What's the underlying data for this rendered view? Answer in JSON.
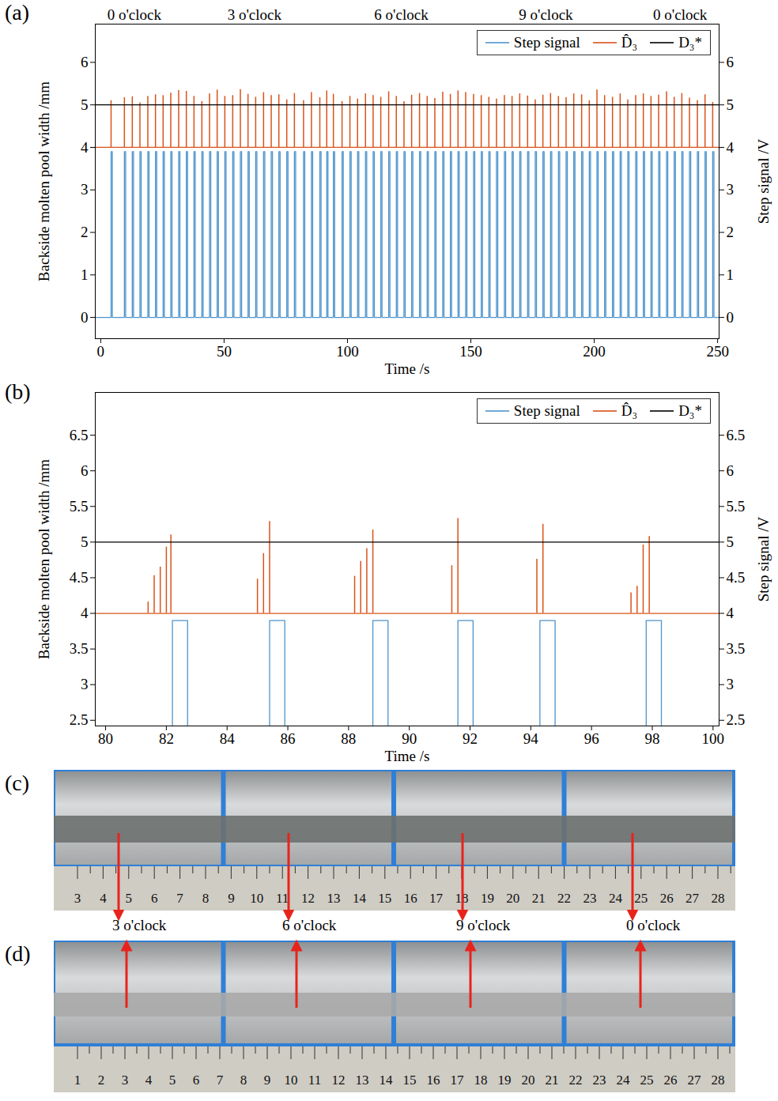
{
  "chart_data": [
    {
      "type": "line",
      "title": "(a)",
      "xlabel": "Time /s",
      "ylabel": "Backside molten pool width /mm",
      "y2label": "Step signal /V",
      "xlim": [
        -2.2,
        250.6
      ],
      "xticks": [
        0,
        50,
        100,
        150,
        200,
        250
      ],
      "x2ticks": [
        {
          "value": 13.6,
          "label": "0 o'clock"
        },
        {
          "value": 62.3,
          "label": "3 o'clock"
        },
        {
          "value": 121.8,
          "label": "6 o'clock"
        },
        {
          "value": 180.4,
          "label": "9 o'clock"
        },
        {
          "value": 234.8,
          "label": "0 o'clock"
        }
      ],
      "ylim": [
        -0.5,
        6.9
      ],
      "yticks": [
        0,
        1,
        2,
        3,
        4,
        5,
        6
      ],
      "y2lim": [
        -0.5,
        6.9
      ],
      "y2ticks": [
        0,
        1,
        2,
        3,
        4,
        5,
        6
      ],
      "legend": "top-right",
      "series": [
        {
          "name": "Step signal",
          "color": "#4d94cc",
          "type": "step",
          "axis": "y2",
          "low": 0,
          "high": 3.9,
          "pulse_width": 0.5,
          "x": [
            4.2,
            9.6,
            12.8,
            15.9,
            19.1,
            22.2,
            25.3,
            28.4,
            31.6,
            34.7,
            37.8,
            41.0,
            44.1,
            47.2,
            50.3,
            53.5,
            56.6,
            59.7,
            62.8,
            66.0,
            69.1,
            72.2,
            75.4,
            78.5,
            82.2,
            85.4,
            88.8,
            91.6,
            94.3,
            97.8,
            101.0,
            104.1,
            107.3,
            110.4,
            113.5,
            116.7,
            119.8,
            122.9,
            126.0,
            129.2,
            132.3,
            135.4,
            138.6,
            141.7,
            144.8,
            147.9,
            151.1,
            154.2,
            157.3,
            160.4,
            163.6,
            166.7,
            169.8,
            173.0,
            176.1,
            179.2,
            182.3,
            185.5,
            188.6,
            191.7,
            194.9,
            198.0,
            201.1,
            204.2,
            207.4,
            210.5,
            213.6,
            216.8,
            219.9,
            223.0,
            226.1,
            229.3,
            232.4,
            235.5,
            238.6,
            241.8,
            244.9,
            248.0
          ]
        },
        {
          "name": "D̂₃",
          "color": "#d95319",
          "type": "spike",
          "baseline": 4,
          "x": [
            4.2,
            9.6,
            12.8,
            15.9,
            19.1,
            22.2,
            25.3,
            28.4,
            31.6,
            34.7,
            37.8,
            41.0,
            44.1,
            47.2,
            50.3,
            53.5,
            56.6,
            59.7,
            62.8,
            66.0,
            69.1,
            72.2,
            75.4,
            78.5,
            82.2,
            85.4,
            88.8,
            91.6,
            94.3,
            97.8,
            101.0,
            104.1,
            107.3,
            110.4,
            113.5,
            116.7,
            119.8,
            122.9,
            126.0,
            129.2,
            132.3,
            135.4,
            138.6,
            141.7,
            144.8,
            147.9,
            151.1,
            154.2,
            157.3,
            160.4,
            163.6,
            166.7,
            169.8,
            173.0,
            176.1,
            179.2,
            182.3,
            185.5,
            188.6,
            191.7,
            194.9,
            198.0,
            201.1,
            204.2,
            207.4,
            210.5,
            213.6,
            216.8,
            219.9,
            223.0,
            226.1,
            229.3,
            232.4,
            235.5,
            238.6,
            241.8,
            244.9,
            248.0
          ],
          "values": [
            5.1,
            5.17,
            5.19,
            5.05,
            5.2,
            5.24,
            5.22,
            5.28,
            5.34,
            5.32,
            5.2,
            5.08,
            5.26,
            5.35,
            5.2,
            5.22,
            5.36,
            5.25,
            5.18,
            5.29,
            5.22,
            5.24,
            5.12,
            5.27,
            5.1,
            5.29,
            5.17,
            5.33,
            5.25,
            5.08,
            5.2,
            5.14,
            5.26,
            5.22,
            5.18,
            5.31,
            5.2,
            5.08,
            5.23,
            5.27,
            5.2,
            5.15,
            5.3,
            5.25,
            5.33,
            5.29,
            5.25,
            5.22,
            5.18,
            5.14,
            5.22,
            5.2,
            5.26,
            5.21,
            5.12,
            5.23,
            5.27,
            5.2,
            5.17,
            5.26,
            5.24,
            5.1,
            5.35,
            5.22,
            5.18,
            5.26,
            5.12,
            5.22,
            5.26,
            5.2,
            5.23,
            5.31,
            5.18,
            5.27,
            5.16,
            5.1,
            5.24,
            5.06
          ]
        },
        {
          "name": "D₃*",
          "color": "#000000",
          "type": "hline",
          "values": [
            5
          ]
        }
      ]
    },
    {
      "type": "line",
      "title": "(b)",
      "xlabel": "Time /s",
      "ylabel": "Backside molten pool width /mm",
      "y2label": "Step signal /V",
      "xlim": [
        79.66,
        100.2
      ],
      "xticks": [
        80,
        82,
        84,
        86,
        88,
        90,
        92,
        94,
        96,
        98,
        100
      ],
      "ylim": [
        2.42,
        7.1
      ],
      "yticks": [
        2.5,
        3,
        3.5,
        4,
        4.5,
        5,
        5.5,
        6,
        6.5
      ],
      "y2lim": [
        2.42,
        7.1
      ],
      "y2ticks": [
        2.5,
        3,
        3.5,
        4,
        4.5,
        5,
        5.5,
        6,
        6.5
      ],
      "legend": "top-right",
      "series": [
        {
          "name": "Step signal",
          "color": "#4d94cc",
          "type": "step",
          "axis": "y2",
          "low": 0,
          "high": 3.9,
          "pulse_width": 0.5,
          "x": [
            82.2,
            85.4,
            88.8,
            91.6,
            94.3,
            97.8
          ]
        },
        {
          "name": "D̂₃",
          "color": "#d95319",
          "type": "spike",
          "baseline": 4,
          "x": [
            81.4,
            81.6,
            81.8,
            82.0,
            82.15,
            85.0,
            85.2,
            85.4,
            88.2,
            88.4,
            88.6,
            88.8,
            91.4,
            91.6,
            94.2,
            94.4,
            97.3,
            97.5,
            97.7,
            97.9
          ],
          "values": [
            4.16,
            4.53,
            4.65,
            4.93,
            5.1,
            4.48,
            4.84,
            5.29,
            4.52,
            4.73,
            4.91,
            5.17,
            4.67,
            5.33,
            4.76,
            5.25,
            4.29,
            4.38,
            4.96,
            5.08
          ]
        },
        {
          "name": "D₃*",
          "color": "#000000",
          "type": "hline",
          "values": [
            5
          ]
        }
      ]
    }
  ],
  "photos": {
    "panels": [
      {
        "label": "(c)",
        "ruler_labels": [
          3,
          4,
          5,
          6,
          7,
          8,
          9,
          10,
          11,
          12,
          13,
          14,
          15,
          16,
          17,
          18,
          19,
          20,
          21,
          22,
          23,
          24,
          25,
          26,
          27,
          28
        ]
      },
      {
        "label": "(d)",
        "ruler_labels": [
          1,
          2,
          3,
          4,
          5,
          6,
          7,
          8,
          9,
          10,
          11,
          12,
          13,
          14,
          15,
          16,
          17,
          18,
          19,
          20,
          21,
          22,
          23,
          24,
          25,
          26,
          27,
          28
        ]
      }
    ],
    "annotations": [
      "3 o'clock",
      "6 o'clock",
      "9 o'clock",
      "0 o'clock"
    ]
  }
}
